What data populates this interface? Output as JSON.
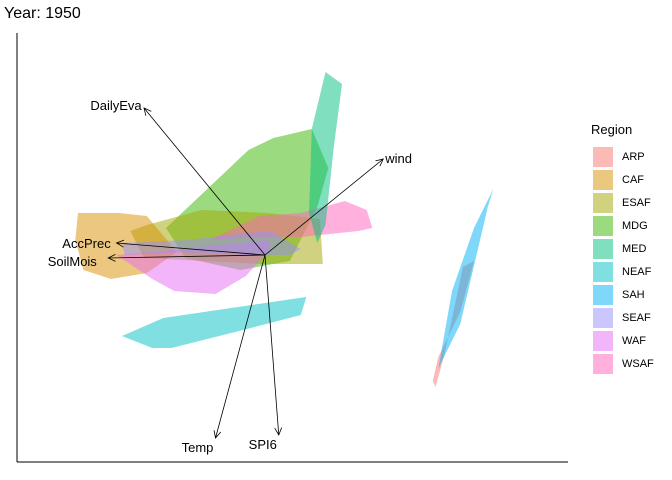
{
  "chart_data": {
    "type": "biplot",
    "title": "Year: 1950",
    "legend": {
      "title": "Region",
      "placement": "right",
      "items": [
        {
          "name": "ARP",
          "color": "#F8766D"
        },
        {
          "name": "CAF",
          "color": "#D89000"
        },
        {
          "name": "ESAF",
          "color": "#A3A500"
        },
        {
          "name": "MDG",
          "color": "#39B600"
        },
        {
          "name": "MED",
          "color": "#00BF7D"
        },
        {
          "name": "NEAF",
          "color": "#00BFC4"
        },
        {
          "name": "SAH",
          "color": "#00B0F6"
        },
        {
          "name": "SEAF",
          "color": "#9590FF"
        },
        {
          "name": "WAF",
          "color": "#E76BF3"
        },
        {
          "name": "WSAF",
          "color": "#FF62BC"
        }
      ]
    },
    "xlim": [
      -1,
      1
    ],
    "ylim": [
      -1,
      1
    ],
    "origin": [
      0,
      0
    ],
    "grid": false,
    "axes": "left-bottom lines, no ticks",
    "vectors": [
      {
        "name": "DailyEva",
        "x": -0.44,
        "y": 0.49
      },
      {
        "name": "wind",
        "x": 0.43,
        "y": 0.32
      },
      {
        "name": "AccPrec",
        "x": -0.54,
        "y": 0.04
      },
      {
        "name": "SoilMois",
        "x": -0.57,
        "y": -0.01
      },
      {
        "name": "Temp",
        "x": -0.18,
        "y": -0.61
      },
      {
        "name": "SPI6",
        "x": 0.05,
        "y": -0.6
      }
    ],
    "hulls": [
      {
        "name": "MDG",
        "points": [
          [
            -0.36,
            0.09
          ],
          [
            -0.06,
            0.35
          ],
          [
            0.03,
            0.39
          ],
          [
            0.17,
            0.42
          ],
          [
            0.23,
            0.29
          ],
          [
            0.19,
            0.16
          ],
          [
            0.09,
            -0.02
          ],
          [
            -0.09,
            -0.05
          ],
          [
            -0.29,
            -0.01
          ]
        ]
      },
      {
        "name": "ESAF",
        "points": [
          [
            -0.49,
            0.08
          ],
          [
            -0.43,
            0.1
          ],
          [
            -0.23,
            0.15
          ],
          [
            0.01,
            0.14
          ],
          [
            0.2,
            0.12
          ],
          [
            0.21,
            -0.03
          ],
          [
            -0.01,
            -0.03
          ],
          [
            -0.22,
            -0.02
          ],
          [
            -0.44,
            -0.01
          ]
        ]
      },
      {
        "name": "CAF",
        "points": [
          [
            -0.68,
            0.14
          ],
          [
            -0.53,
            0.14
          ],
          [
            -0.43,
            0.13
          ],
          [
            -0.32,
            0.01
          ],
          [
            -0.43,
            -0.06
          ],
          [
            -0.56,
            -0.08
          ],
          [
            -0.66,
            -0.05
          ],
          [
            -0.69,
            0.05
          ]
        ]
      },
      {
        "name": "WSAF",
        "points": [
          [
            -0.2,
            0.05
          ],
          [
            -0.02,
            0.13
          ],
          [
            0.13,
            0.14
          ],
          [
            0.29,
            0.18
          ],
          [
            0.37,
            0.15
          ],
          [
            0.39,
            0.09
          ],
          [
            0.34,
            0.08
          ],
          [
            0.13,
            0.06
          ],
          [
            -0.05,
            0.06
          ]
        ]
      },
      {
        "name": "MED",
        "points": [
          [
            0.17,
            0.42
          ],
          [
            0.22,
            0.61
          ],
          [
            0.28,
            0.57
          ],
          [
            0.25,
            0.36
          ],
          [
            0.22,
            0.1
          ],
          [
            0.19,
            0.04
          ],
          [
            0.16,
            0.14
          ]
        ]
      },
      {
        "name": "WAF",
        "points": [
          [
            -0.54,
            0.0
          ],
          [
            -0.41,
            -0.08
          ],
          [
            -0.33,
            -0.12
          ],
          [
            -0.18,
            -0.13
          ],
          [
            -0.07,
            -0.07
          ],
          [
            0.02,
            0.02
          ],
          [
            0.01,
            0.05
          ],
          [
            -0.2,
            0.03
          ],
          [
            -0.4,
            0.01
          ]
        ]
      },
      {
        "name": "SEAF",
        "points": [
          [
            -0.52,
            0.04
          ],
          [
            -0.28,
            0.05
          ],
          [
            -0.1,
            0.07
          ],
          [
            0.02,
            0.08
          ],
          [
            0.13,
            0.02
          ],
          [
            0.09,
            0.0
          ],
          [
            -0.06,
            0.0
          ],
          [
            -0.3,
            0.01
          ],
          [
            -0.51,
            0.0
          ]
        ]
      },
      {
        "name": "NEAF",
        "points": [
          [
            -0.52,
            -0.27
          ],
          [
            -0.37,
            -0.21
          ],
          [
            0.0,
            -0.16
          ],
          [
            0.15,
            -0.14
          ],
          [
            0.13,
            -0.2
          ],
          [
            -0.08,
            -0.25
          ],
          [
            -0.34,
            -0.31
          ],
          [
            -0.41,
            -0.31
          ]
        ]
      },
      {
        "name": "ARP",
        "points": [
          [
            0.72,
            -0.04
          ],
          [
            0.76,
            -0.02
          ],
          [
            0.71,
            -0.19
          ],
          [
            0.63,
            -0.34
          ],
          [
            0.61,
            -0.42
          ],
          [
            0.62,
            -0.44
          ],
          [
            0.65,
            -0.34
          ]
        ]
      },
      {
        "name": "SAH",
        "points": [
          [
            0.81,
            0.16
          ],
          [
            0.83,
            0.22
          ],
          [
            0.76,
            0.09
          ],
          [
            0.68,
            -0.12
          ],
          [
            0.63,
            -0.38
          ],
          [
            0.64,
            -0.36
          ],
          [
            0.71,
            -0.23
          ]
        ]
      }
    ]
  }
}
